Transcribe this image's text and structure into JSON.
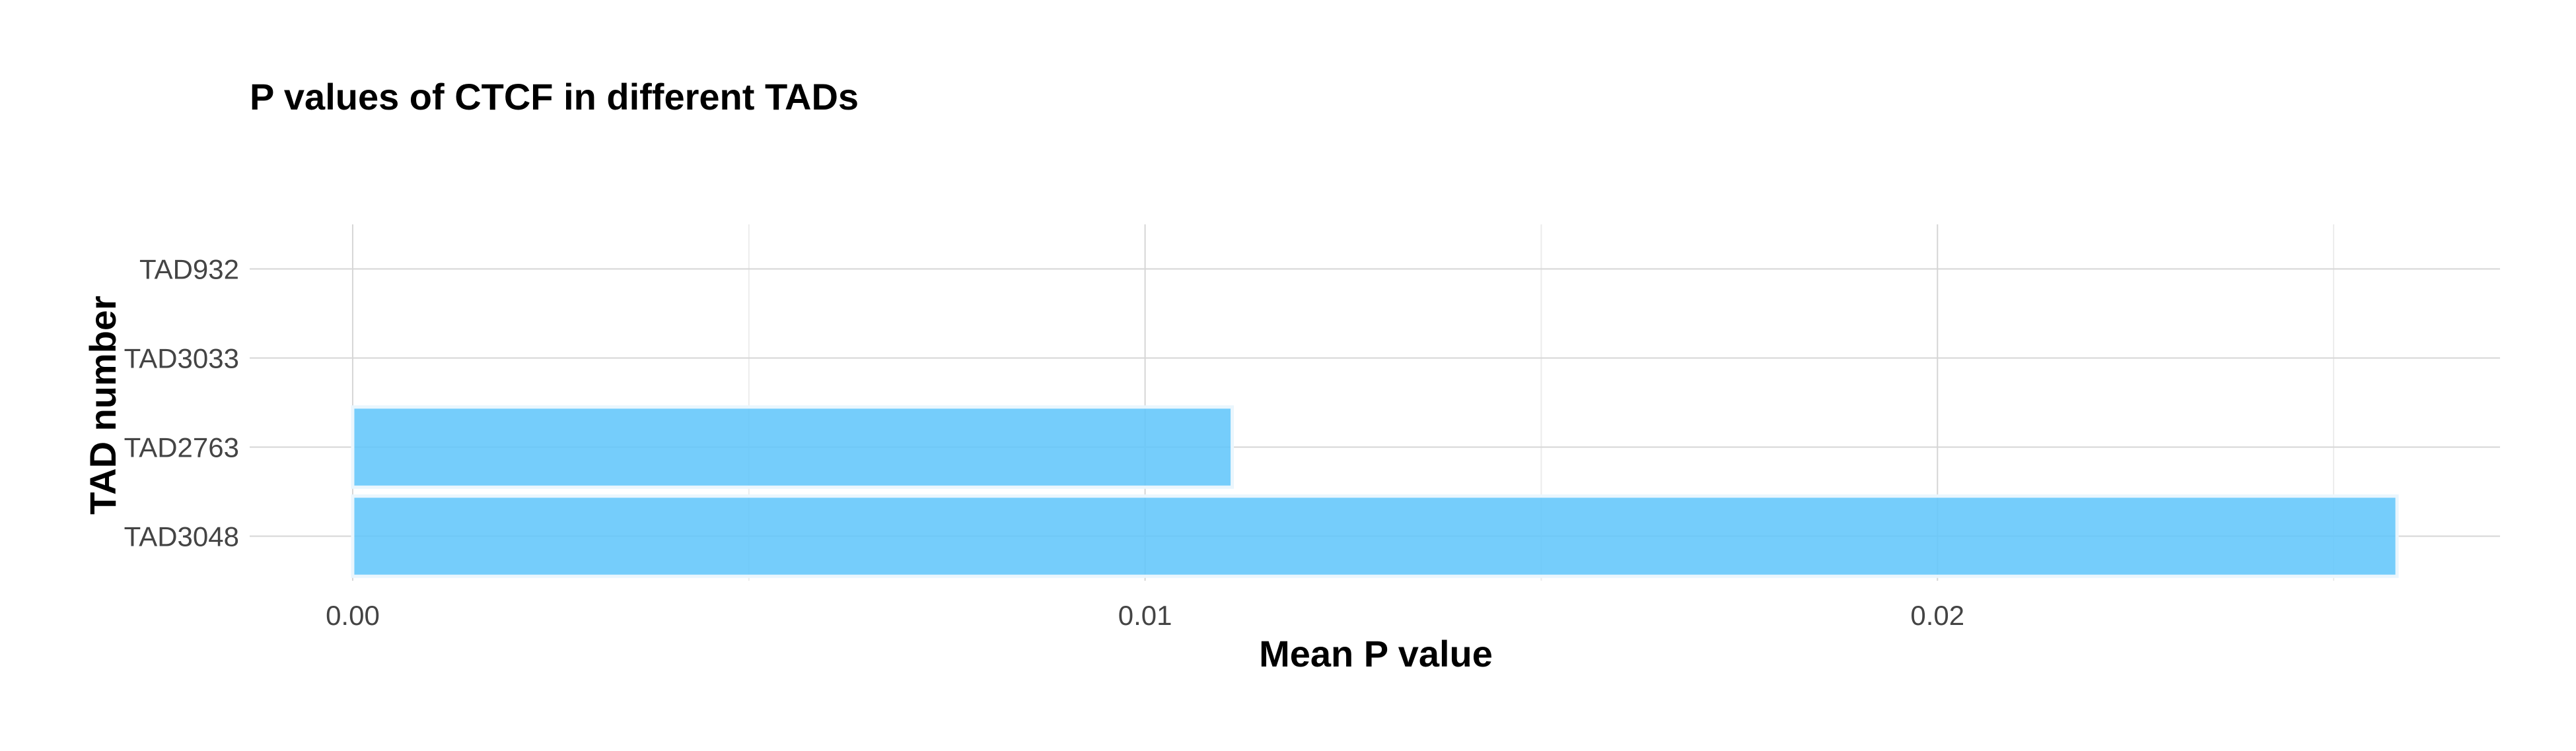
{
  "chart_data": {
    "type": "bar",
    "orientation": "horizontal",
    "title": "P values of CTCF in different TADs",
    "xlabel": "Mean P value",
    "ylabel": "TAD number",
    "categories": [
      "TAD3048",
      "TAD2763",
      "TAD3033",
      "TAD932"
    ],
    "values": [
      0.0258,
      0.0111,
      0.0,
      0.0
    ],
    "xlim": [
      -0.0013,
      0.0271
    ],
    "xticks": [
      0.0,
      0.01,
      0.02
    ],
    "xtick_labels": [
      "0.00",
      "0.01",
      "0.02"
    ],
    "grid": true,
    "legend": "none",
    "colors": {
      "bar_fill": "#62c6fb",
      "bar_outline": "#eaf6fd",
      "grid_major": "#d6d6d6",
      "grid_minor": "#ececec"
    }
  }
}
